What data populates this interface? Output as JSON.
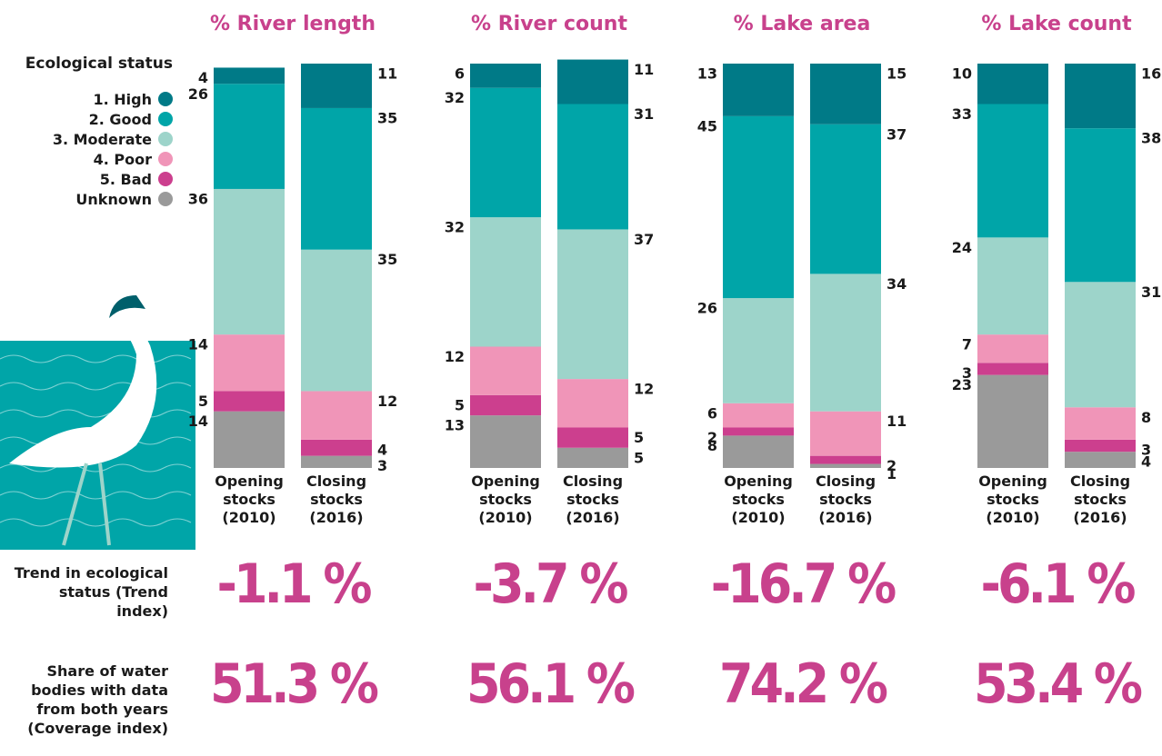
{
  "legend_title": "Ecological status",
  "row_labels": [
    "Trend in ecological status (Trend index)",
    "Share of water bodies with data from both years (Coverage index)"
  ],
  "chart_data": [
    {
      "type": "bar",
      "stacked": true,
      "title": "% River length",
      "categories": [
        "Opening stocks (2010)",
        "Closing stocks (2016)"
      ],
      "ylim": [
        0,
        100
      ],
      "series": [
        {
          "name": "1. High",
          "color": "#007a87",
          "values": [
            4,
            11
          ]
        },
        {
          "name": "2. Good",
          "color": "#00a5a8",
          "values": [
            26,
            35
          ]
        },
        {
          "name": "3. Moderate",
          "color": "#9dd4ca",
          "values": [
            36,
            35
          ]
        },
        {
          "name": "4. Poor",
          "color": "#f095b8",
          "values": [
            14,
            12
          ]
        },
        {
          "name": "5. Bad",
          "color": "#cc3f8e",
          "values": [
            5,
            4
          ]
        },
        {
          "name": "Unknown",
          "color": "#9a9a9a",
          "values": [
            14,
            3
          ]
        }
      ],
      "trend": "-1.1 %",
      "coverage": "51.3 %"
    },
    {
      "type": "bar",
      "stacked": true,
      "title": "% River count",
      "categories": [
        "Opening stocks (2010)",
        "Closing stocks (2016)"
      ],
      "ylim": [
        0,
        100
      ],
      "series": [
        {
          "name": "1. High",
          "color": "#007a87",
          "values": [
            6,
            11
          ]
        },
        {
          "name": "2. Good",
          "color": "#00a5a8",
          "values": [
            32,
            31
          ]
        },
        {
          "name": "3. Moderate",
          "color": "#9dd4ca",
          "values": [
            32,
            37
          ]
        },
        {
          "name": "4. Poor",
          "color": "#f095b8",
          "values": [
            12,
            12
          ]
        },
        {
          "name": "5. Bad",
          "color": "#cc3f8e",
          "values": [
            5,
            5
          ]
        },
        {
          "name": "Unknown",
          "color": "#9a9a9a",
          "values": [
            13,
            5
          ]
        }
      ],
      "trend": "-3.7 %",
      "coverage": "56.1 %"
    },
    {
      "type": "bar",
      "stacked": true,
      "title": "% Lake area",
      "categories": [
        "Opening stocks (2010)",
        "Closing stocks (2016)"
      ],
      "ylim": [
        0,
        100
      ],
      "series": [
        {
          "name": "1. High",
          "color": "#007a87",
          "values": [
            13,
            15
          ]
        },
        {
          "name": "2. Good",
          "color": "#00a5a8",
          "values": [
            45,
            37
          ]
        },
        {
          "name": "3. Moderate",
          "color": "#9dd4ca",
          "values": [
            26,
            34
          ]
        },
        {
          "name": "4. Poor",
          "color": "#f095b8",
          "values": [
            6,
            11
          ]
        },
        {
          "name": "5. Bad",
          "color": "#cc3f8e",
          "values": [
            2,
            2
          ]
        },
        {
          "name": "Unknown",
          "color": "#9a9a9a",
          "values": [
            8,
            1
          ]
        }
      ],
      "trend": "-16.7 %",
      "coverage": "74.2 %"
    },
    {
      "type": "bar",
      "stacked": true,
      "title": "% Lake count",
      "categories": [
        "Opening stocks (2010)",
        "Closing stocks (2016)"
      ],
      "ylim": [
        0,
        100
      ],
      "series": [
        {
          "name": "1. High",
          "color": "#007a87",
          "values": [
            10,
            16
          ]
        },
        {
          "name": "2. Good",
          "color": "#00a5a8",
          "values": [
            33,
            38
          ]
        },
        {
          "name": "3. Moderate",
          "color": "#9dd4ca",
          "values": [
            24,
            31
          ]
        },
        {
          "name": "4. Poor",
          "color": "#f095b8",
          "values": [
            7,
            8
          ]
        },
        {
          "name": "5. Bad",
          "color": "#cc3f8e",
          "values": [
            3,
            3
          ]
        },
        {
          "name": "Unknown",
          "color": "#9a9a9a",
          "values": [
            23,
            4
          ]
        }
      ],
      "trend": "-6.1 %",
      "coverage": "53.4 %"
    }
  ]
}
